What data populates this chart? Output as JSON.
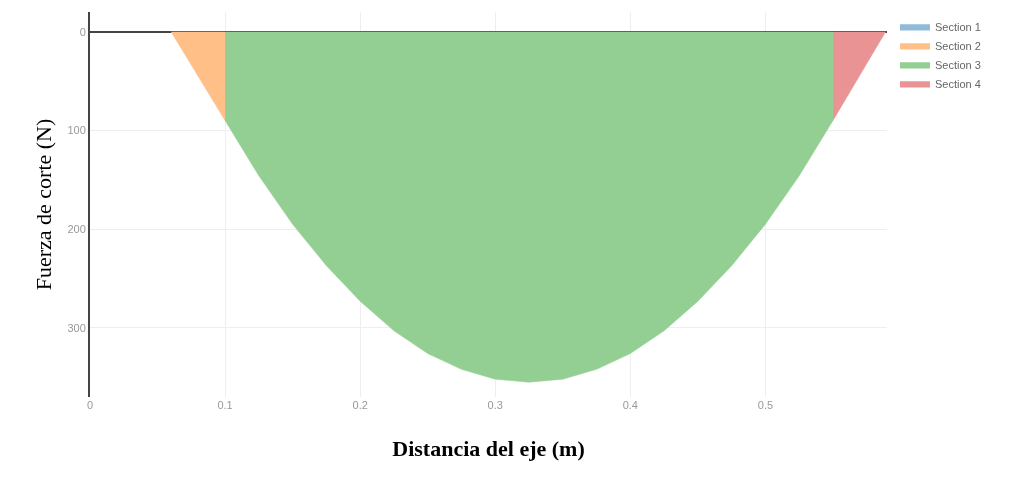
{
  "chart_data": {
    "type": "area",
    "xlabel": "Distancia del eje (m)",
    "ylabel": "Fuerza de corte (N)",
    "xlim": [
      0,
      0.59
    ],
    "xticks": [
      0,
      0.1,
      0.2,
      0.3,
      0.4,
      0.5
    ],
    "ylim": [
      370,
      -20
    ],
    "yticks": [
      0,
      100,
      200,
      300
    ],
    "grid": true,
    "legend": "top right",
    "series": [
      {
        "name": "Section 1",
        "color": "#8fbbd9"
      },
      {
        "name": "Section 2",
        "color": "#ffbf86",
        "x": [
          0.06,
          0.1
        ],
        "values": [
          0,
          90
        ]
      },
      {
        "name": "Section 3",
        "color": "#93cf93",
        "x": [
          0.1,
          0.125,
          0.15,
          0.175,
          0.2,
          0.225,
          0.25,
          0.275,
          0.3,
          0.325,
          0.35,
          0.375,
          0.4,
          0.425,
          0.45,
          0.475,
          0.5,
          0.525,
          0.55
        ],
        "values": [
          90,
          146,
          195,
          237,
          273,
          303,
          326,
          342,
          352,
          355,
          352,
          342,
          326,
          303,
          273,
          237,
          195,
          146,
          90
        ]
      },
      {
        "name": "Section 4",
        "color": "#ea9394",
        "x": [
          0.55,
          0.589
        ],
        "values": [
          90,
          0
        ]
      }
    ]
  }
}
